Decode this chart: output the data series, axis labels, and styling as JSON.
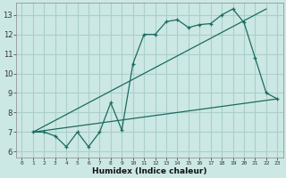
{
  "xlabel": "Humidex (Indice chaleur)",
  "bg_color": "#cce8e4",
  "grid_color": "#aacfcb",
  "line_color": "#1a6b60",
  "xlim": [
    -0.5,
    23.5
  ],
  "ylim": [
    5.7,
    13.6
  ],
  "line1_x": [
    1,
    2,
    3,
    4,
    5,
    6,
    7,
    8,
    9,
    10,
    11,
    12,
    13,
    14,
    15,
    16,
    17,
    18,
    19,
    20,
    21,
    22,
    23
  ],
  "line1_y": [
    7.0,
    7.0,
    6.8,
    6.25,
    7.0,
    6.25,
    7.0,
    8.5,
    7.1,
    10.5,
    12.0,
    12.0,
    12.65,
    12.75,
    12.35,
    12.5,
    12.55,
    13.0,
    13.3,
    12.6,
    10.8,
    9.0,
    8.7
  ],
  "line2_x": [
    1,
    22
  ],
  "line2_y": [
    7.0,
    13.3
  ],
  "line3_x": [
    1,
    23
  ],
  "line3_y": [
    7.0,
    8.7
  ],
  "yticks": [
    6,
    7,
    8,
    9,
    10,
    11,
    12,
    13
  ]
}
